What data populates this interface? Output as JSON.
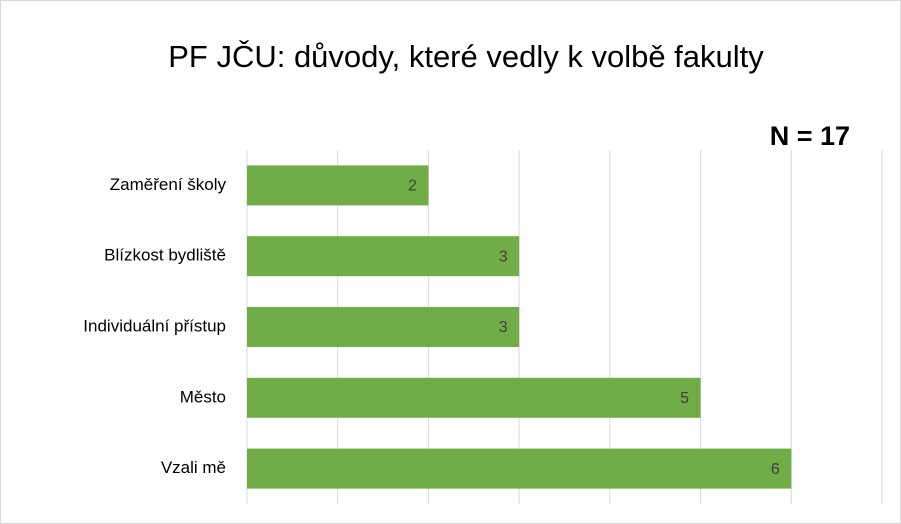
{
  "chart_data": {
    "type": "bar",
    "orientation": "horizontal",
    "title": "PF JČU: důvody, které vedly k volbě fakulty",
    "annotation": "N = 17",
    "categories": [
      "Zaměření školy",
      "Blízkost bydliště",
      "Individuální přístup",
      "Město",
      "Vzali mě"
    ],
    "values": [
      2,
      3,
      3,
      5,
      6
    ],
    "color": "#70ad47",
    "xlim": [
      0,
      7
    ],
    "xticks": [
      0,
      1,
      2,
      3,
      4,
      5,
      6,
      7
    ],
    "grid": true
  }
}
